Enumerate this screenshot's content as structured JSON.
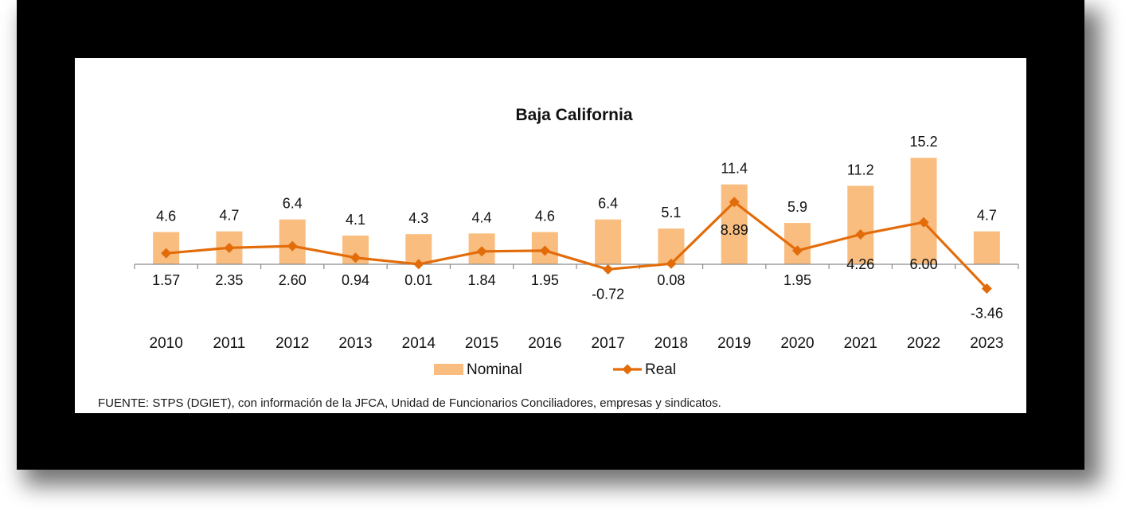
{
  "chart_data": {
    "type": "bar",
    "title": "Baja California",
    "categories": [
      "2010",
      "2011",
      "2012",
      "2013",
      "2014",
      "2015",
      "2016",
      "2017",
      "2018",
      "2019",
      "2020",
      "2021",
      "2022",
      "2023"
    ],
    "series": [
      {
        "name": "Nominal",
        "type": "bar",
        "color": "#F9BD80",
        "values": [
          4.6,
          4.7,
          6.4,
          4.1,
          4.3,
          4.4,
          4.6,
          6.4,
          5.1,
          11.4,
          5.9,
          11.2,
          15.2,
          4.7
        ],
        "labels": [
          "4.6",
          "4.7",
          "6.4",
          "4.1",
          "4.3",
          "4.4",
          "4.6",
          "6.4",
          "5.1",
          "11.4",
          "5.9",
          "11.2",
          "15.2",
          "4.7"
        ]
      },
      {
        "name": "Real",
        "type": "line",
        "color": "#E36C0A",
        "marker": "diamond",
        "values": [
          1.57,
          2.35,
          2.6,
          0.94,
          0.01,
          1.84,
          1.95,
          -0.72,
          0.08,
          8.89,
          1.95,
          4.26,
          6.0,
          -3.46
        ],
        "labels": [
          "1.57",
          "2.35",
          "2.60",
          "0.94",
          "0.01",
          "1.84",
          "1.95",
          "-0.72",
          "0.08",
          "8.89",
          "1.95",
          "4.26",
          "6.00",
          "-3.46"
        ]
      }
    ],
    "legend_position": "bottom",
    "grid": false
  },
  "source_note": "FUENTE: STPS (DGIET),  con información de la JFCA, Unidad de Funcionarios Conciliadores, empresas y sindicatos."
}
